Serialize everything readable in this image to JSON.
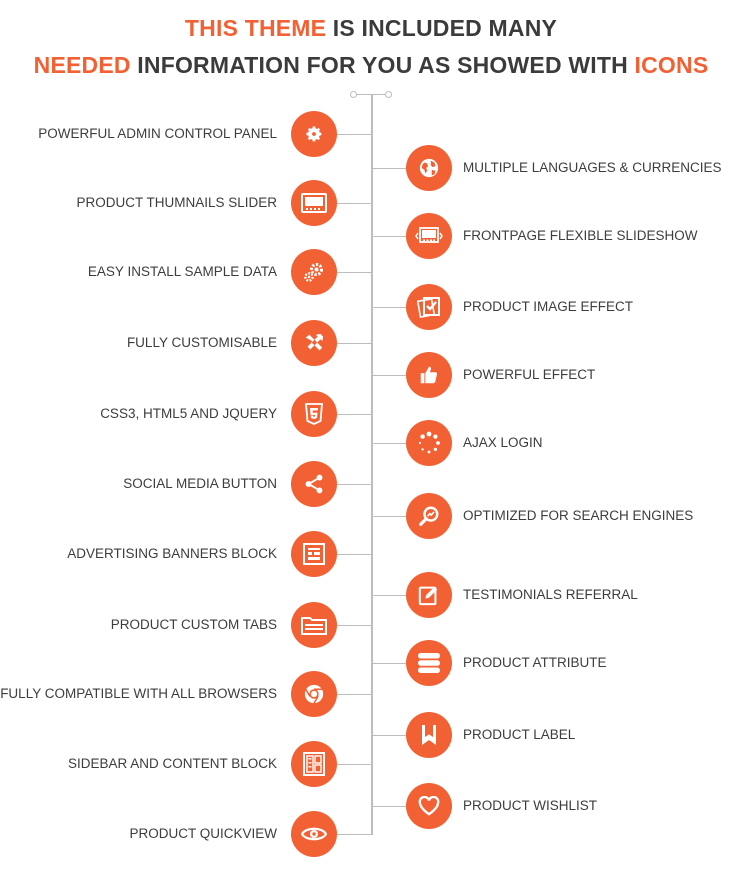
{
  "header": {
    "line1_a": "THIS THEME",
    "line1_b": " IS INCLUDED MANY",
    "line2_a": "NEEDED",
    "line2_b": " INFORMATION FOR YOU AS SHOWED WITH ",
    "line2_c": "ICONS"
  },
  "colors": {
    "accent": "#f26134",
    "text": "#3b3b3b",
    "line": "#bdbdbd"
  },
  "left_features": [
    {
      "label": "POWERFUL ADMIN CONTROL PANEL",
      "icon": "gear-icon"
    },
    {
      "label": "PRODUCT THUMNAILS SLIDER",
      "icon": "thumbnail-slider-icon"
    },
    {
      "label": "EASY INSTALL SAMPLE DATA",
      "icon": "gears-icon"
    },
    {
      "label": "FULLY CUSTOMISABLE",
      "icon": "tools-icon"
    },
    {
      "label": "CSS3, HTML5 AND JQUERY",
      "icon": "html5-icon"
    },
    {
      "label": "SOCIAL MEDIA BUTTON",
      "icon": "share-icon"
    },
    {
      "label": "ADVERTISING BANNERS BLOCK",
      "icon": "banner-icon"
    },
    {
      "label": "PRODUCT CUSTOM TABS",
      "icon": "folder-tabs-icon"
    },
    {
      "label": "FULLY COMPATIBLE WITH ALL BROWSERS",
      "icon": "chrome-icon"
    },
    {
      "label": "SIDEBAR AND CONTENT BLOCK",
      "icon": "layout-blocks-icon"
    },
    {
      "label": "PRODUCT QUICKVIEW",
      "icon": "eye-icon"
    }
  ],
  "right_features": [
    {
      "label": "MULTIPLE LANGUAGES & CURRENCIES",
      "icon": "globe-icon"
    },
    {
      "label": "FRONTPAGE FLEXIBLE SLIDESHOW",
      "icon": "slideshow-icon"
    },
    {
      "label": "PRODUCT IMAGE EFFECT",
      "icon": "image-effect-icon"
    },
    {
      "label": "POWERFUL EFFECT",
      "icon": "thumbs-up-icon"
    },
    {
      "label": "AJAX LOGIN",
      "icon": "loading-spinner-icon"
    },
    {
      "label": "OPTIMIZED FOR SEARCH ENGINES",
      "icon": "seo-search-icon"
    },
    {
      "label": "TESTIMONIALS REFERRAL",
      "icon": "edit-icon"
    },
    {
      "label": "PRODUCT ATTRIBUTE",
      "icon": "list-bars-icon"
    },
    {
      "label": "PRODUCT LABEL",
      "icon": "bookmark-icon"
    },
    {
      "label": "PRODUCT WISHLIST",
      "icon": "heart-icon"
    }
  ]
}
